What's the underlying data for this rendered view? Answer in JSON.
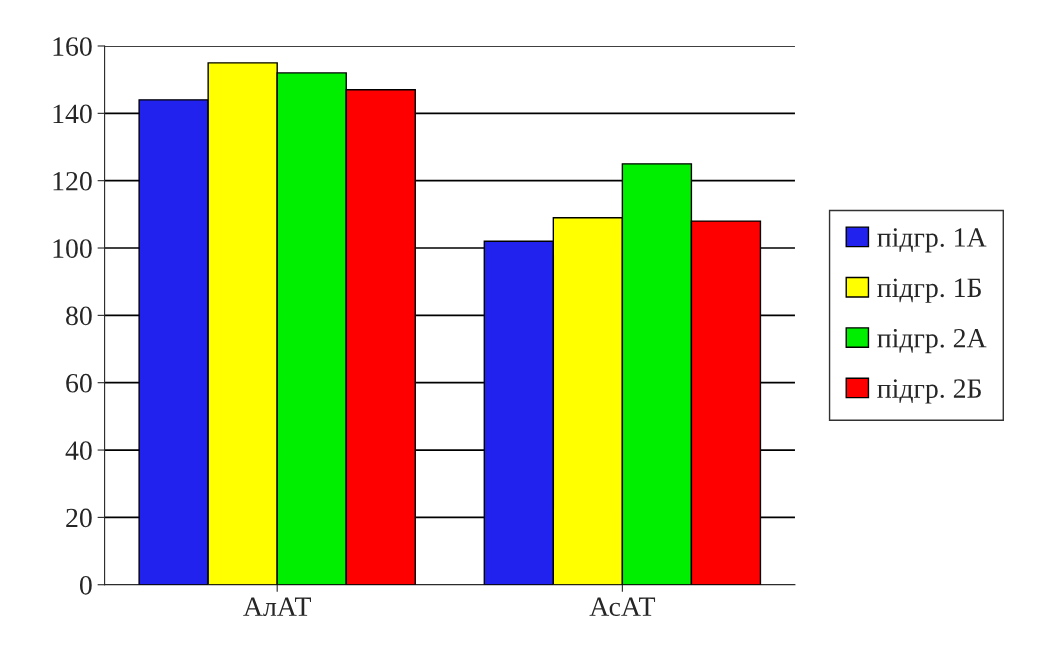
{
  "chart_data": {
    "type": "bar",
    "categories": [
      "АлАТ",
      "АсАТ"
    ],
    "series": [
      {
        "name": "підгр. 1А",
        "color": "#2222ee",
        "values": [
          144,
          102
        ]
      },
      {
        "name": "підгр. 1Б",
        "color": "#ffff00",
        "values": [
          155,
          109
        ]
      },
      {
        "name": "підгр. 2А",
        "color": "#00ee00",
        "values": [
          152,
          125
        ]
      },
      {
        "name": "підгр. 2Б",
        "color": "#ff0000",
        "values": [
          147,
          108
        ]
      }
    ],
    "ylim": [
      0,
      160
    ],
    "yticks": [
      0,
      20,
      40,
      60,
      80,
      100,
      120,
      140,
      160
    ],
    "grid": "y",
    "legend": "right"
  }
}
